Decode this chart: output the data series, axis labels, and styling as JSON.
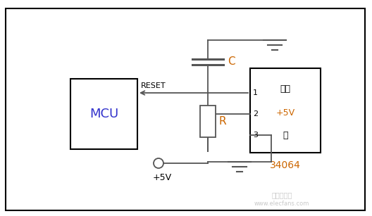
{
  "bg_color": "#ffffff",
  "line_color": "#555555",
  "text_color_mcu": "#3333cc",
  "text_color_ic": "#cc6600",
  "black": "#000000",
  "fig_width": 5.28,
  "fig_height": 3.07,
  "mcu_label": "MCU",
  "ic_label_line1": "输出",
  "ic_label_line2": "+5V",
  "ic_label_line3": "地",
  "ic_name": "34064",
  "reset_label": "RESET",
  "cap_label": "C",
  "res_label": "R",
  "vcc_label": "+5V",
  "pin1_label": "1",
  "pin2_label": "2",
  "pin3_label": "3",
  "watermark1": "电子发烧友",
  "watermark2": "www.elecfans.com"
}
